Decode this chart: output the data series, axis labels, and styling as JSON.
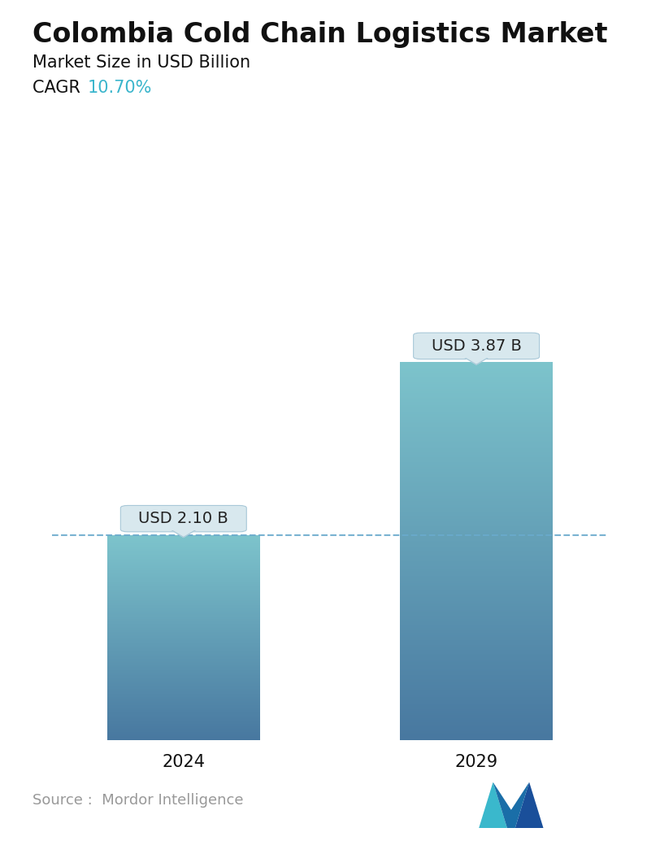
{
  "title": "Colombia Cold Chain Logistics Market",
  "subtitle": "Market Size in USD Billion",
  "cagr_label": "CAGR  ",
  "cagr_value": "10.70%",
  "cagr_color": "#3ab5cc",
  "categories": [
    "2024",
    "2029"
  ],
  "values": [
    2.1,
    3.87
  ],
  "bar_labels": [
    "USD 2.10 B",
    "USD 3.87 B"
  ],
  "bar_color_top": "#7dc4cc",
  "bar_color_bottom": "#4878a0",
  "dashed_line_color": "#6aabcc",
  "dashed_line_value": 2.1,
  "source_text": "Source :  Mordor Intelligence",
  "source_color": "#999999",
  "background_color": "#ffffff",
  "title_fontsize": 24,
  "subtitle_fontsize": 15,
  "cagr_fontsize": 15,
  "label_fontsize": 14,
  "tick_fontsize": 15,
  "source_fontsize": 13,
  "ylim": [
    0,
    5.0
  ],
  "bar_width": 0.52,
  "callout_facecolor": "#d8e8ee",
  "callout_edgecolor": "#a8c8d8"
}
